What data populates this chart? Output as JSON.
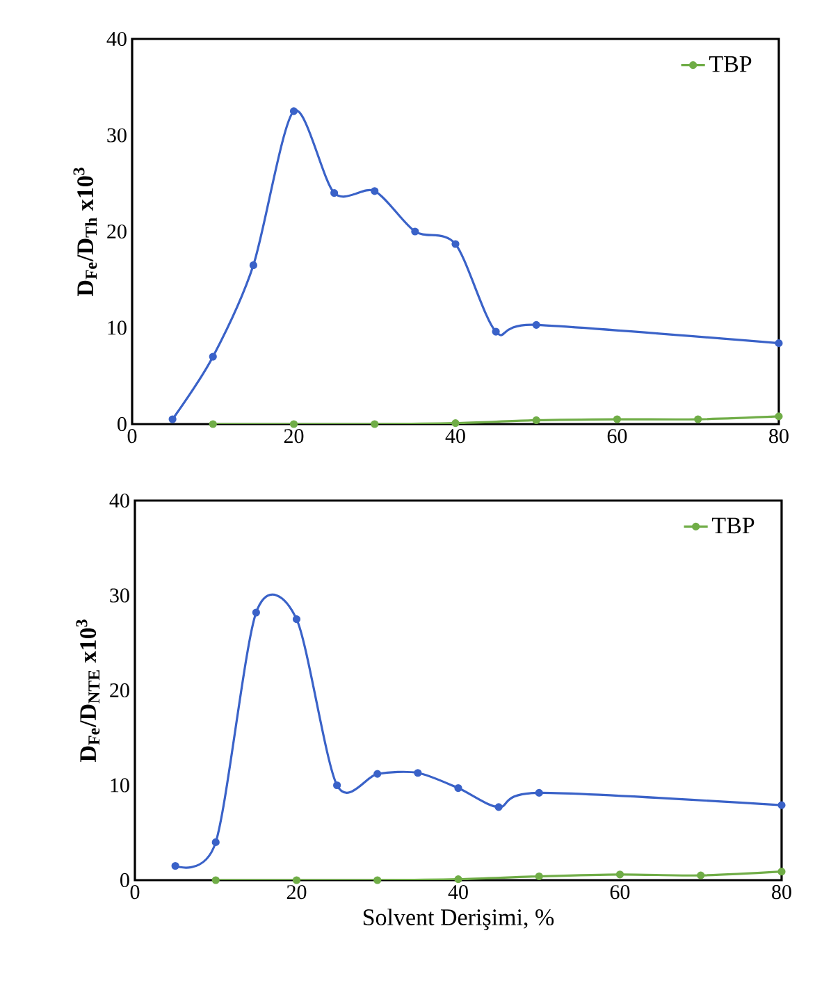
{
  "chart_data": [
    {
      "type": "line",
      "ylabel": "D$_{Fe}$/D$_{Th}$   x10$^{3}$",
      "xlim": [
        0,
        80
      ],
      "xticks": [
        0,
        20,
        40,
        60,
        80
      ],
      "ylim": [
        0,
        40
      ],
      "yticks": [
        0,
        10,
        20,
        30,
        40
      ],
      "marker": "circle",
      "legend": "top right",
      "series": [
        {
          "color": "#3a62c8",
          "x": [
            5,
            10,
            15,
            20,
            25,
            30,
            35,
            40,
            45,
            50,
            80
          ],
          "values": [
            0.5,
            7,
            16.5,
            32.5,
            24,
            24.2,
            20,
            18.7,
            9.6,
            10.3,
            8.4
          ]
        },
        {
          "name": "TBP",
          "color": "#70ad47",
          "x": [
            10,
            20,
            30,
            40,
            50,
            60,
            70,
            80
          ],
          "values": [
            0,
            0,
            0,
            0.1,
            0.4,
            0.5,
            0.5,
            0.8
          ]
        }
      ]
    },
    {
      "type": "line",
      "ylabel": "D$_{Fe}$/D$_{NTE}$   x10$^{3}$",
      "xlabel": "Solvent Derişimi, %",
      "xlim": [
        0,
        80
      ],
      "xticks": [
        0,
        20,
        40,
        60,
        80
      ],
      "ylim": [
        0,
        40
      ],
      "yticks": [
        0,
        10,
        20,
        30,
        40
      ],
      "marker": "circle",
      "legend": "top right",
      "series": [
        {
          "color": "#3a62c8",
          "x": [
            5,
            10,
            15,
            20,
            25,
            30,
            35,
            40,
            45,
            50,
            80
          ],
          "values": [
            1.5,
            4,
            28.2,
            27.5,
            10,
            11.2,
            11.3,
            9.7,
            7.7,
            9.2,
            7.9
          ]
        },
        {
          "name": "TBP",
          "color": "#70ad47",
          "x": [
            10,
            20,
            30,
            40,
            50,
            60,
            70,
            80
          ],
          "values": [
            0,
            0,
            0,
            0.1,
            0.4,
            0.6,
            0.5,
            0.9
          ]
        }
      ]
    }
  ]
}
